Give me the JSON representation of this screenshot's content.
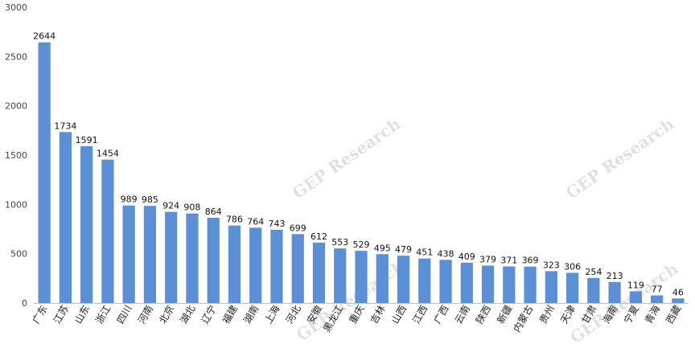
{
  "chart_data": {
    "type": "bar",
    "categories": [
      "广东",
      "江苏",
      "山东",
      "浙江",
      "四川",
      "河南",
      "北京",
      "湖北",
      "辽宁",
      "福建",
      "湖南",
      "上海",
      "河北",
      "安徽",
      "黑龙江",
      "重庆",
      "吉林",
      "山西",
      "江西",
      "广西",
      "云南",
      "陕西",
      "新疆",
      "内蒙古",
      "贵州",
      "天津",
      "甘肃",
      "海南",
      "宁夏",
      "青海",
      "西藏"
    ],
    "values": [
      2644,
      1734,
      1591,
      1454,
      989,
      985,
      924,
      908,
      864,
      786,
      764,
      743,
      699,
      612,
      553,
      529,
      495,
      479,
      451,
      438,
      409,
      379,
      371,
      369,
      323,
      306,
      254,
      213,
      119,
      77,
      46
    ],
    "data_labels": [
      "2644",
      "1734",
      "1591",
      "1454",
      "989",
      "985",
      "924",
      "908",
      "864",
      "786",
      "764",
      "743",
      "699",
      "612",
      "553",
      "529",
      "495",
      "479",
      "451",
      "438",
      "409",
      "379",
      "371",
      "369",
      "323",
      "306",
      "254",
      "213",
      "119",
      "77",
      "46"
    ],
    "y_ticks": [
      "0",
      "500",
      "1000",
      "1500",
      "2000",
      "2500",
      "3000"
    ],
    "ylim": [
      0,
      3000
    ],
    "grid": false,
    "bar_color": "#5b8fd6",
    "axis_color": "#bfbfbf",
    "watermark": "GEP Research"
  }
}
